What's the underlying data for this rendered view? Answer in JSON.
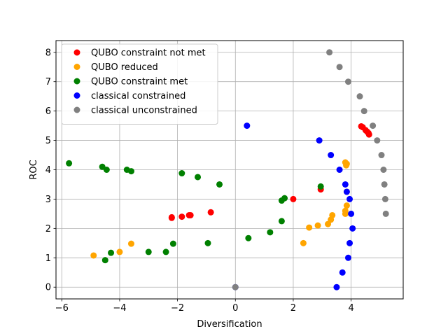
{
  "chart_data": {
    "type": "scatter",
    "xlabel": "Diversification",
    "ylabel": "ROC",
    "xlim": [
      -6.2,
      5.8
    ],
    "ylim": [
      -0.4,
      8.4
    ],
    "x_ticks": [
      -6,
      -4,
      -2,
      0,
      2,
      4
    ],
    "x_tick_labels": [
      "−6",
      "−4",
      "−2",
      "0",
      "2",
      "4"
    ],
    "y_ticks": [
      0,
      1,
      2,
      3,
      4,
      5,
      6,
      7,
      8
    ],
    "y_tick_labels": [
      "0",
      "1",
      "2",
      "3",
      "4",
      "5",
      "6",
      "7",
      "8"
    ],
    "grid": true,
    "legend_position": "top-left",
    "series": [
      {
        "name": "QUBO constraint not met",
        "color": "#ff0000",
        "points": [
          [
            -2.2,
            2.38
          ],
          [
            -2.2,
            2.36
          ],
          [
            -1.85,
            2.4
          ],
          [
            -1.6,
            2.45
          ],
          [
            -1.55,
            2.45
          ],
          [
            -0.85,
            2.55
          ],
          [
            2.0,
            3.0
          ],
          [
            2.95,
            3.33
          ],
          [
            4.35,
            5.48
          ],
          [
            4.4,
            5.45
          ],
          [
            4.5,
            5.35
          ],
          [
            4.55,
            5.3
          ],
          [
            4.6,
            5.25
          ],
          [
            4.62,
            5.2
          ]
        ]
      },
      {
        "name": "QUBO reduced",
        "color": "#ffa500",
        "points": [
          [
            -4.9,
            1.08
          ],
          [
            -4.0,
            1.2
          ],
          [
            -3.6,
            1.48
          ],
          [
            2.35,
            1.5
          ],
          [
            2.55,
            2.03
          ],
          [
            2.85,
            2.1
          ],
          [
            3.2,
            2.15
          ],
          [
            3.3,
            2.3
          ],
          [
            3.35,
            2.45
          ],
          [
            3.8,
            2.5
          ],
          [
            3.8,
            2.6
          ],
          [
            3.85,
            2.78
          ],
          [
            3.85,
            3.25
          ],
          [
            3.8,
            4.25
          ],
          [
            3.85,
            4.2
          ],
          [
            3.83,
            4.15
          ]
        ]
      },
      {
        "name": "QUBO constraint met",
        "color": "#008000",
        "points": [
          [
            -5.75,
            4.22
          ],
          [
            -4.6,
            4.1
          ],
          [
            -4.45,
            4.0
          ],
          [
            -3.75,
            4.0
          ],
          [
            -3.6,
            3.95
          ],
          [
            -1.85,
            3.88
          ],
          [
            -1.3,
            3.75
          ],
          [
            -0.55,
            3.5
          ],
          [
            -4.5,
            0.92
          ],
          [
            -4.3,
            1.17
          ],
          [
            -3.0,
            1.2
          ],
          [
            -2.4,
            1.2
          ],
          [
            -2.15,
            1.48
          ],
          [
            -0.95,
            1.5
          ],
          [
            0.45,
            1.67
          ],
          [
            1.2,
            1.87
          ],
          [
            1.6,
            2.25
          ],
          [
            1.6,
            2.95
          ],
          [
            1.7,
            3.03
          ],
          [
            2.95,
            3.43
          ]
        ]
      },
      {
        "name": "classical constrained",
        "color": "#0000ff",
        "points": [
          [
            0.0,
            0.0
          ],
          [
            0.4,
            5.5
          ],
          [
            2.9,
            5.0
          ],
          [
            3.3,
            4.5
          ],
          [
            3.6,
            4.0
          ],
          [
            3.8,
            3.5
          ],
          [
            3.95,
            3.0
          ],
          [
            4.0,
            2.5
          ],
          [
            4.05,
            2.0
          ],
          [
            3.95,
            1.5
          ],
          [
            3.9,
            1.0
          ],
          [
            3.7,
            0.5
          ],
          [
            3.5,
            0.0
          ],
          [
            3.85,
            3.25
          ]
        ]
      },
      {
        "name": "classical unconstrained",
        "color": "#808080",
        "points": [
          [
            3.25,
            8.0
          ],
          [
            3.6,
            7.5
          ],
          [
            3.9,
            7.0
          ],
          [
            4.3,
            6.5
          ],
          [
            4.45,
            6.0
          ],
          [
            4.75,
            5.5
          ],
          [
            4.9,
            5.0
          ],
          [
            5.05,
            4.5
          ],
          [
            5.12,
            4.0
          ],
          [
            5.15,
            3.5
          ],
          [
            5.18,
            3.0
          ],
          [
            5.2,
            2.5
          ],
          [
            0.0,
            0.0
          ]
        ]
      }
    ]
  }
}
